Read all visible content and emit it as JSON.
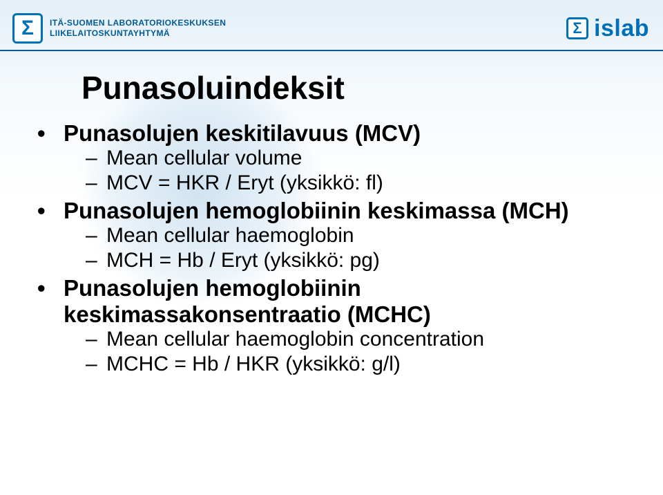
{
  "colors": {
    "primary": "#0070b8",
    "header_rule": "#005a9c",
    "text": "#000000",
    "brand_text": "#005a94",
    "footer_text": "#6b7b89",
    "bg_gradient_top": "rgba(180,210,235,0.35)",
    "background": "#ffffff"
  },
  "typography": {
    "title_fontsize": 46,
    "title_weight": 700,
    "l1_fontsize": 33,
    "l1_weight": 700,
    "l2_fontsize": 30,
    "l2_weight": 400,
    "font_family": "Arial"
  },
  "header": {
    "sigma_glyph": "Σ",
    "org_line1": "ITÄ-SUOMEN LABORATORIOKESKUKSEN",
    "org_line2": "LIIKELAITOSKUNTAYHTYMÄ",
    "islab": "islab"
  },
  "slide": {
    "title": "Punasoluindeksit",
    "bullets": [
      {
        "text": "Punasolujen keskitilavuus (MCV)",
        "sub": [
          "Mean cellular volume",
          "MCV = HKR / Eryt (yksikkö: fl)"
        ]
      },
      {
        "text": "Punasolujen hemoglobiinin keskimassa (MCH)",
        "sub": [
          "Mean cellular haemoglobin",
          "MCH = Hb / Eryt (yksikkö: pg)"
        ]
      },
      {
        "text": "Punasolujen hemoglobiinin keskimassakonsentraatio (MCHC)",
        "sub": [
          "Mean cellular haemoglobin concentration",
          "MCHC = Hb / HKR (yksikkö: g/l)"
        ]
      }
    ]
  },
  "footer": ""
}
